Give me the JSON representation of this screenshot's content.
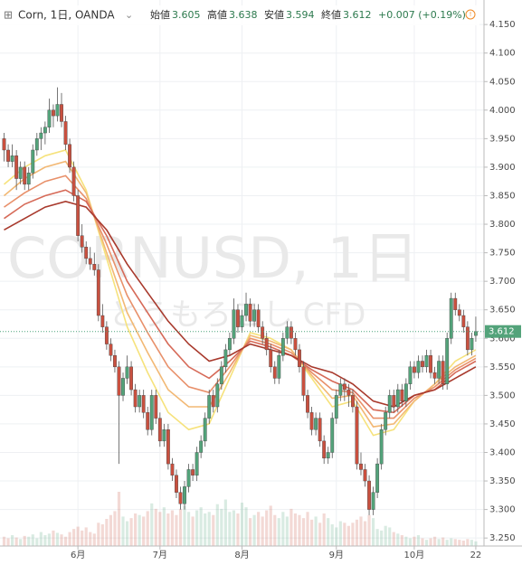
{
  "chart_data": {
    "type": "candlestick",
    "symbol": "Corn, 1日, OANDA",
    "ohlc_header": {
      "open_label": "始値",
      "open": 3.605,
      "high_label": "高値",
      "high": 3.638,
      "low_label": "安値",
      "low": 3.594,
      "close_label": "終値",
      "close": 3.612,
      "change": "+0.007 (+0.19%)"
    },
    "watermark": "CORNUSD, 1日",
    "watermark_sub": "とうもろこし CFD",
    "up_color": "#53a37a",
    "down_color": "#c9503f",
    "ylim": [
      3.236,
      4.193
    ],
    "yticks": [
      {
        "value": 3.25,
        "label": "3.250"
      },
      {
        "value": 3.3,
        "label": "3.300"
      },
      {
        "value": 3.35,
        "label": "3.350"
      },
      {
        "value": 3.4,
        "label": "3.400"
      },
      {
        "value": 3.45,
        "label": "3.450"
      },
      {
        "value": 3.5,
        "label": "3.500"
      },
      {
        "value": 3.55,
        "label": "3.550"
      },
      {
        "value": 3.6,
        "label": "3.600"
      },
      {
        "value": 3.65,
        "label": "3.650"
      },
      {
        "value": 3.7,
        "label": "3.700"
      },
      {
        "value": 3.75,
        "label": "3.750"
      },
      {
        "value": 3.8,
        "label": "3.800"
      },
      {
        "value": 3.85,
        "label": "3.850"
      },
      {
        "value": 3.9,
        "label": "3.900"
      },
      {
        "value": 3.95,
        "label": "3.950"
      },
      {
        "value": 4.0,
        "label": "4.000"
      },
      {
        "value": 4.05,
        "label": "4.050"
      },
      {
        "value": 4.1,
        "label": "4.100"
      },
      {
        "value": 4.15,
        "label": "4.150"
      }
    ],
    "xlim": [
      -1,
      117
    ],
    "xticks": [
      {
        "value": 18,
        "label": "6月"
      },
      {
        "value": 38,
        "label": "7月"
      },
      {
        "value": 58,
        "label": "8月"
      },
      {
        "value": 81,
        "label": "9月"
      },
      {
        "value": 100,
        "label": "10月"
      },
      {
        "value": 115,
        "label": "22"
      }
    ],
    "grid": true,
    "candles": [
      [
        3.95,
        3.96,
        3.91,
        3.93
      ],
      [
        3.93,
        3.94,
        3.9,
        3.91
      ],
      [
        3.91,
        3.94,
        3.9,
        3.92
      ],
      [
        3.92,
        3.93,
        3.86,
        3.88
      ],
      [
        3.88,
        3.91,
        3.87,
        3.9
      ],
      [
        3.9,
        3.91,
        3.86,
        3.87
      ],
      [
        3.87,
        3.9,
        3.86,
        3.89
      ],
      [
        3.89,
        3.94,
        3.88,
        3.93
      ],
      [
        3.93,
        3.96,
        3.92,
        3.95
      ],
      [
        3.95,
        3.97,
        3.93,
        3.96
      ],
      [
        3.96,
        3.98,
        3.94,
        3.97
      ],
      [
        3.97,
        4.02,
        3.96,
        4.0
      ],
      [
        4.0,
        4.01,
        3.97,
        3.99
      ],
      [
        3.99,
        4.04,
        3.98,
        4.01
      ],
      [
        4.01,
        4.03,
        3.97,
        3.98
      ],
      [
        3.98,
        3.99,
        3.93,
        3.94
      ],
      [
        3.94,
        3.95,
        3.89,
        3.9
      ],
      [
        3.9,
        3.91,
        3.84,
        3.85
      ],
      [
        3.85,
        3.86,
        3.77,
        3.78
      ],
      [
        3.78,
        3.8,
        3.75,
        3.76
      ],
      [
        3.76,
        3.77,
        3.73,
        3.74
      ],
      [
        3.74,
        3.76,
        3.72,
        3.73
      ],
      [
        3.73,
        3.75,
        3.71,
        3.72
      ],
      [
        3.72,
        3.73,
        3.63,
        3.64
      ],
      [
        3.64,
        3.66,
        3.61,
        3.62
      ],
      [
        3.62,
        3.63,
        3.58,
        3.59
      ],
      [
        3.59,
        3.6,
        3.56,
        3.57
      ],
      [
        3.57,
        3.58,
        3.54,
        3.55
      ],
      [
        3.55,
        3.56,
        3.38,
        3.5
      ],
      [
        3.5,
        3.54,
        3.49,
        3.53
      ],
      [
        3.53,
        3.57,
        3.52,
        3.55
      ],
      [
        3.55,
        3.56,
        3.5,
        3.51
      ],
      [
        3.51,
        3.52,
        3.47,
        3.48
      ],
      [
        3.48,
        3.51,
        3.47,
        3.5
      ],
      [
        3.5,
        3.51,
        3.46,
        3.47
      ],
      [
        3.47,
        3.48,
        3.43,
        3.44
      ],
      [
        3.44,
        3.51,
        3.43,
        3.5
      ],
      [
        3.5,
        3.51,
        3.45,
        3.46
      ],
      [
        3.46,
        3.47,
        3.41,
        3.42
      ],
      [
        3.42,
        3.45,
        3.41,
        3.44
      ],
      [
        3.44,
        3.45,
        3.37,
        3.38
      ],
      [
        3.38,
        3.39,
        3.35,
        3.36
      ],
      [
        3.36,
        3.37,
        3.32,
        3.33
      ],
      [
        3.33,
        3.34,
        3.3,
        3.31
      ],
      [
        3.31,
        3.35,
        3.3,
        3.34
      ],
      [
        3.34,
        3.38,
        3.33,
        3.37
      ],
      [
        3.37,
        3.38,
        3.35,
        3.36
      ],
      [
        3.36,
        3.41,
        3.35,
        3.4
      ],
      [
        3.4,
        3.43,
        3.39,
        3.42
      ],
      [
        3.42,
        3.47,
        3.41,
        3.46
      ],
      [
        3.46,
        3.51,
        3.45,
        3.5
      ],
      [
        3.5,
        3.51,
        3.47,
        3.48
      ],
      [
        3.48,
        3.53,
        3.47,
        3.52
      ],
      [
        3.52,
        3.56,
        3.51,
        3.55
      ],
      [
        3.55,
        3.59,
        3.54,
        3.58
      ],
      [
        3.58,
        3.61,
        3.57,
        3.6
      ],
      [
        3.6,
        3.67,
        3.59,
        3.65
      ],
      [
        3.65,
        3.66,
        3.61,
        3.62
      ],
      [
        3.62,
        3.65,
        3.61,
        3.64
      ],
      [
        3.64,
        3.68,
        3.63,
        3.66
      ],
      [
        3.66,
        3.67,
        3.62,
        3.63
      ],
      [
        3.63,
        3.66,
        3.62,
        3.65
      ],
      [
        3.65,
        3.66,
        3.61,
        3.62
      ],
      [
        3.62,
        3.63,
        3.59,
        3.6
      ],
      [
        3.6,
        3.61,
        3.57,
        3.58
      ],
      [
        3.58,
        3.59,
        3.54,
        3.55
      ],
      [
        3.55,
        3.56,
        3.52,
        3.53
      ],
      [
        3.53,
        3.58,
        3.52,
        3.57
      ],
      [
        3.57,
        3.61,
        3.56,
        3.6
      ],
      [
        3.6,
        3.63,
        3.59,
        3.62
      ],
      [
        3.62,
        3.63,
        3.59,
        3.6
      ],
      [
        3.6,
        3.61,
        3.57,
        3.58
      ],
      [
        3.58,
        3.59,
        3.54,
        3.55
      ],
      [
        3.55,
        3.56,
        3.49,
        3.5
      ],
      [
        3.5,
        3.51,
        3.46,
        3.47
      ],
      [
        3.47,
        3.48,
        3.43,
        3.44
      ],
      [
        3.44,
        3.47,
        3.43,
        3.46
      ],
      [
        3.46,
        3.47,
        3.41,
        3.42
      ],
      [
        3.42,
        3.43,
        3.38,
        3.39
      ],
      [
        3.39,
        3.41,
        3.38,
        3.4
      ],
      [
        3.4,
        3.47,
        3.39,
        3.46
      ],
      [
        3.46,
        3.51,
        3.45,
        3.5
      ],
      [
        3.5,
        3.53,
        3.49,
        3.52
      ],
      [
        3.52,
        3.53,
        3.49,
        3.51
      ],
      [
        3.51,
        3.52,
        3.48,
        3.5
      ],
      [
        3.5,
        3.51,
        3.47,
        3.48
      ],
      [
        3.48,
        3.49,
        3.37,
        3.38
      ],
      [
        3.38,
        3.4,
        3.36,
        3.37
      ],
      [
        3.37,
        3.38,
        3.34,
        3.35
      ],
      [
        3.35,
        3.36,
        3.29,
        3.3
      ],
      [
        3.3,
        3.34,
        3.29,
        3.33
      ],
      [
        3.33,
        3.39,
        3.32,
        3.38
      ],
      [
        3.38,
        3.45,
        3.37,
        3.44
      ],
      [
        3.44,
        3.48,
        3.43,
        3.47
      ],
      [
        3.47,
        3.51,
        3.46,
        3.5
      ],
      [
        3.5,
        3.51,
        3.47,
        3.48
      ],
      [
        3.48,
        3.52,
        3.47,
        3.51
      ],
      [
        3.51,
        3.52,
        3.48,
        3.49
      ],
      [
        3.49,
        3.53,
        3.48,
        3.52
      ],
      [
        3.52,
        3.56,
        3.51,
        3.55
      ],
      [
        3.55,
        3.56,
        3.53,
        3.54
      ],
      [
        3.54,
        3.57,
        3.53,
        3.56
      ],
      [
        3.56,
        3.57,
        3.54,
        3.55
      ],
      [
        3.55,
        3.58,
        3.54,
        3.57
      ],
      [
        3.57,
        3.58,
        3.53,
        3.54
      ],
      [
        3.54,
        3.55,
        3.52,
        3.53
      ],
      [
        3.53,
        3.57,
        3.52,
        3.56
      ],
      [
        3.56,
        3.57,
        3.51,
        3.52
      ],
      [
        3.52,
        3.61,
        3.51,
        3.6
      ],
      [
        3.6,
        3.68,
        3.59,
        3.67
      ],
      [
        3.67,
        3.68,
        3.64,
        3.65
      ],
      [
        3.65,
        3.66,
        3.63,
        3.64
      ],
      [
        3.64,
        3.65,
        3.61,
        3.62
      ],
      [
        3.62,
        3.63,
        3.57,
        3.58
      ],
      [
        3.58,
        3.61,
        3.57,
        3.6
      ],
      [
        3.605,
        3.638,
        3.594,
        3.612
      ]
    ],
    "volume": [
      12,
      10,
      14,
      11,
      9,
      13,
      12,
      15,
      10,
      18,
      14,
      16,
      20,
      17,
      15,
      12,
      18,
      22,
      25,
      20,
      24,
      18,
      16,
      30,
      28,
      35,
      40,
      45,
      70,
      38,
      32,
      36,
      42,
      40,
      38,
      45,
      55,
      48,
      44,
      50,
      42,
      46,
      40,
      48,
      52,
      44,
      38,
      46,
      50,
      42,
      44,
      40,
      54,
      48,
      60,
      44,
      46,
      42,
      56,
      50,
      36,
      40,
      44,
      38,
      46,
      52,
      40,
      36,
      44,
      38,
      48,
      42,
      40,
      36,
      44,
      34,
      38,
      30,
      42,
      36,
      28,
      24,
      32,
      30,
      26,
      30,
      34,
      38,
      32,
      40,
      36,
      22,
      20,
      26,
      24,
      18,
      16,
      14,
      12,
      10,
      12,
      14,
      10,
      8,
      10,
      12,
      9,
      11,
      8,
      10,
      9,
      8,
      7,
      9,
      8,
      6
    ],
    "ma_x": [
      0,
      5,
      10,
      15,
      20,
      25,
      30,
      35,
      40,
      45,
      50,
      55,
      60,
      65,
      70,
      75,
      80,
      85,
      90,
      95,
      100,
      105,
      110,
      115
    ],
    "ribbons": [
      {
        "color": "#f6e27c",
        "values": [
          3.87,
          3.9,
          3.92,
          3.93,
          3.86,
          3.74,
          3.62,
          3.54,
          3.47,
          3.44,
          3.45,
          3.53,
          3.61,
          3.6,
          3.58,
          3.53,
          3.48,
          3.49,
          3.43,
          3.44,
          3.49,
          3.52,
          3.56,
          3.58
        ]
      },
      {
        "color": "#f2b874",
        "values": [
          3.85,
          3.88,
          3.9,
          3.91,
          3.855,
          3.75,
          3.645,
          3.575,
          3.51,
          3.48,
          3.48,
          3.54,
          3.605,
          3.595,
          3.58,
          3.535,
          3.495,
          3.5,
          3.445,
          3.45,
          3.49,
          3.52,
          3.55,
          3.57
        ]
      },
      {
        "color": "#e8906a",
        "values": [
          3.83,
          3.855,
          3.875,
          3.885,
          3.845,
          3.765,
          3.675,
          3.61,
          3.55,
          3.515,
          3.505,
          3.55,
          3.6,
          3.59,
          3.575,
          3.54,
          3.51,
          3.505,
          3.46,
          3.46,
          3.495,
          3.515,
          3.545,
          3.565
        ]
      },
      {
        "color": "#d66a58",
        "values": [
          3.81,
          3.835,
          3.85,
          3.86,
          3.84,
          3.78,
          3.7,
          3.645,
          3.59,
          3.55,
          3.53,
          3.56,
          3.595,
          3.585,
          3.57,
          3.545,
          3.525,
          3.51,
          3.475,
          3.47,
          3.5,
          3.51,
          3.54,
          3.56
        ]
      },
      {
        "color": "#a8392c",
        "values": [
          3.79,
          3.81,
          3.83,
          3.84,
          3.83,
          3.79,
          3.73,
          3.68,
          3.63,
          3.59,
          3.56,
          3.57,
          3.59,
          3.58,
          3.57,
          3.55,
          3.54,
          3.52,
          3.49,
          3.48,
          3.5,
          3.51,
          3.53,
          3.55
        ]
      }
    ]
  }
}
